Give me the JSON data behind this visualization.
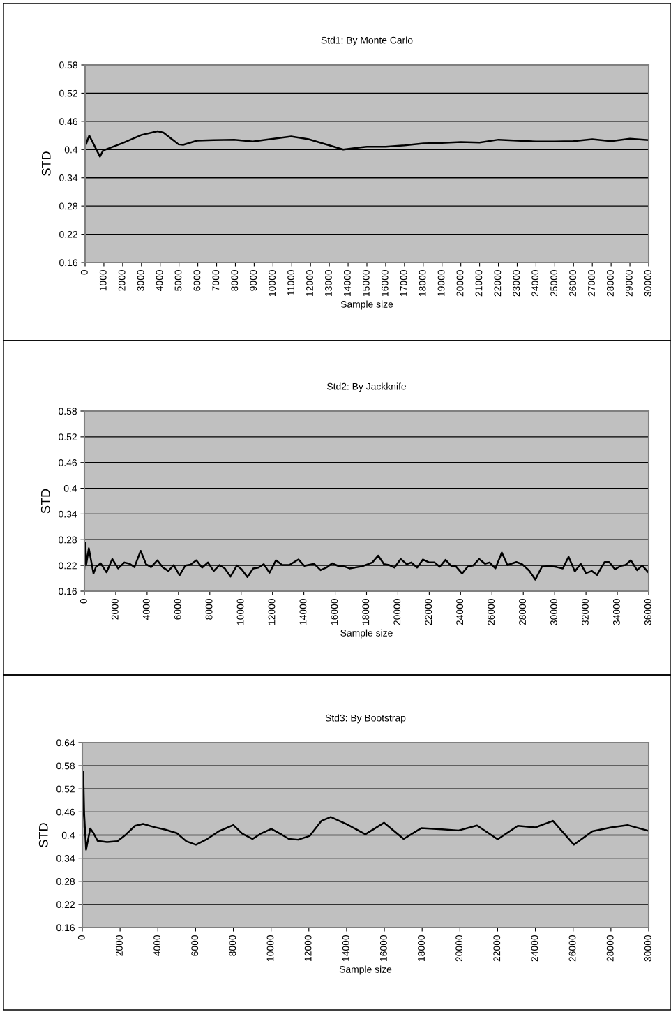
{
  "chart_data": [
    {
      "type": "line",
      "title": "Std1: By Monte Carlo",
      "xlabel": "Sample size",
      "ylabel": "STD",
      "xlim": [
        0,
        30000
      ],
      "xticks": [
        0,
        1000,
        2000,
        3000,
        4000,
        5000,
        6000,
        7000,
        8000,
        9000,
        10000,
        11000,
        12000,
        13000,
        14000,
        15000,
        16000,
        17000,
        18000,
        19000,
        20000,
        21000,
        22000,
        23000,
        24000,
        25000,
        26000,
        27000,
        28000,
        29000,
        30000
      ],
      "ylim": [
        0.16,
        0.58
      ],
      "yticks": [
        0.16,
        0.22,
        0.28,
        0.34,
        0.4,
        0.46,
        0.52,
        0.58
      ],
      "grid": "y",
      "marker": "none",
      "line_style": "solid",
      "series": [
        {
          "color": "#000000",
          "x": [
            0,
            50,
            220,
            790,
            960,
            2010,
            3000,
            3860,
            4170,
            4975,
            5220,
            5960,
            6830,
            7940,
            8930,
            10040,
            10970,
            11900,
            13000,
            13740,
            14730,
            15000,
            16000,
            17000,
            18000,
            19000,
            20000,
            21000,
            22000,
            23000,
            24000,
            25000,
            26000,
            27000,
            28000,
            29000,
            30000
          ],
          "values": [
            0.46,
            0.411,
            0.43,
            0.385,
            0.398,
            0.414,
            0.431,
            0.439,
            0.436,
            0.411,
            0.41,
            0.419,
            0.42,
            0.421,
            0.417,
            0.423,
            0.428,
            0.422,
            0.409,
            0.4,
            0.405,
            0.406,
            0.406,
            0.409,
            0.413,
            0.414,
            0.416,
            0.415,
            0.421,
            0.419,
            0.417,
            0.417,
            0.418,
            0.422,
            0.418,
            0.423,
            0.42
          ]
        }
      ]
    },
    {
      "type": "line",
      "title": "Std2: By Jackknife",
      "xlabel": "Sample size",
      "ylabel": "STD",
      "xlim": [
        0,
        36000
      ],
      "xticks": [
        0,
        2000,
        4000,
        6000,
        8000,
        10000,
        12000,
        14000,
        16000,
        18000,
        20000,
        22000,
        24000,
        26000,
        28000,
        30000,
        32000,
        34000,
        36000
      ],
      "ylim": [
        0.16,
        0.58
      ],
      "yticks": [
        0.16,
        0.22,
        0.28,
        0.34,
        0.4,
        0.46,
        0.52,
        0.58
      ],
      "grid": "y",
      "marker": "none",
      "line_style": "solid",
      "series": [
        {
          "color": "#000000",
          "x": [
            0,
            60,
            120,
            280,
            580,
            730,
            1040,
            1410,
            1780,
            2150,
            2550,
            2890,
            3190,
            3590,
            3930,
            4250,
            4650,
            4990,
            5360,
            5700,
            6070,
            6440,
            6770,
            7140,
            7510,
            7880,
            8250,
            8620,
            8960,
            9320,
            9730,
            10030,
            10400,
            10770,
            11100,
            11440,
            11810,
            12220,
            12620,
            13070,
            13660,
            14030,
            14650,
            15070,
            15440,
            15810,
            16180,
            16550,
            16920,
            17730,
            18370,
            18740,
            19110,
            19440,
            19780,
            20180,
            20560,
            20860,
            21230,
            21600,
            22000,
            22340,
            22670,
            23040,
            23410,
            23700,
            24100,
            24470,
            24810,
            25190,
            25560,
            25850,
            26220,
            26630,
            26990,
            27560,
            27930,
            28370,
            28770,
            29190,
            29700,
            30150,
            30520,
            30890,
            31290,
            31660,
            32000,
            32370,
            32710,
            33190,
            33480,
            33850,
            34220,
            34520,
            34860,
            35260,
            35590,
            35970
          ],
          "values": [
            0.213,
            0.273,
            0.223,
            0.26,
            0.201,
            0.216,
            0.225,
            0.204,
            0.235,
            0.213,
            0.227,
            0.224,
            0.216,
            0.254,
            0.223,
            0.216,
            0.232,
            0.216,
            0.207,
            0.221,
            0.197,
            0.22,
            0.222,
            0.232,
            0.215,
            0.227,
            0.207,
            0.221,
            0.213,
            0.194,
            0.22,
            0.211,
            0.193,
            0.213,
            0.215,
            0.223,
            0.203,
            0.232,
            0.221,
            0.221,
            0.234,
            0.219,
            0.224,
            0.209,
            0.215,
            0.225,
            0.219,
            0.218,
            0.213,
            0.218,
            0.227,
            0.243,
            0.223,
            0.221,
            0.215,
            0.235,
            0.223,
            0.227,
            0.215,
            0.234,
            0.227,
            0.227,
            0.217,
            0.233,
            0.219,
            0.218,
            0.201,
            0.218,
            0.22,
            0.235,
            0.224,
            0.227,
            0.213,
            0.25,
            0.221,
            0.228,
            0.223,
            0.208,
            0.187,
            0.217,
            0.219,
            0.216,
            0.213,
            0.24,
            0.206,
            0.224,
            0.202,
            0.207,
            0.198,
            0.228,
            0.228,
            0.211,
            0.219,
            0.221,
            0.232,
            0.209,
            0.22,
            0.204
          ]
        }
      ]
    },
    {
      "type": "line",
      "title": "Std3: By Bootstrap",
      "xlabel": "Sample size",
      "ylabel": "STD",
      "xlim": [
        0,
        30000
      ],
      "xticks": [
        0,
        2000,
        4000,
        6000,
        8000,
        10000,
        12000,
        14000,
        16000,
        18000,
        20000,
        22000,
        24000,
        26000,
        28000,
        30000
      ],
      "ylim": [
        0.16,
        0.64
      ],
      "yticks": [
        0.16,
        0.22,
        0.28,
        0.34,
        0.4,
        0.46,
        0.52,
        0.58,
        0.64
      ],
      "grid": "y",
      "marker": "none",
      "line_style": "solid",
      "series": [
        {
          "color": "#000000",
          "x": [
            0,
            50,
            100,
            200,
            420,
            570,
            810,
            1310,
            1860,
            2300,
            2790,
            3220,
            3780,
            4400,
            5010,
            5510,
            6020,
            6620,
            7230,
            8000,
            8470,
            9020,
            9460,
            10010,
            10570,
            10940,
            11430,
            12050,
            12670,
            13160,
            14020,
            14990,
            15980,
            17020,
            17950,
            19060,
            19930,
            20910,
            22000,
            23070,
            24000,
            24930,
            26040,
            27020,
            28010,
            28880,
            30000
          ],
          "values": [
            0.422,
            0.564,
            0.455,
            0.362,
            0.417,
            0.407,
            0.385,
            0.382,
            0.384,
            0.401,
            0.424,
            0.429,
            0.421,
            0.414,
            0.405,
            0.384,
            0.375,
            0.39,
            0.41,
            0.426,
            0.404,
            0.39,
            0.404,
            0.416,
            0.401,
            0.39,
            0.388,
            0.398,
            0.437,
            0.447,
            0.428,
            0.402,
            0.432,
            0.39,
            0.418,
            0.415,
            0.412,
            0.425,
            0.389,
            0.424,
            0.42,
            0.437,
            0.375,
            0.41,
            0.42,
            0.426,
            0.411
          ]
        }
      ]
    }
  ]
}
